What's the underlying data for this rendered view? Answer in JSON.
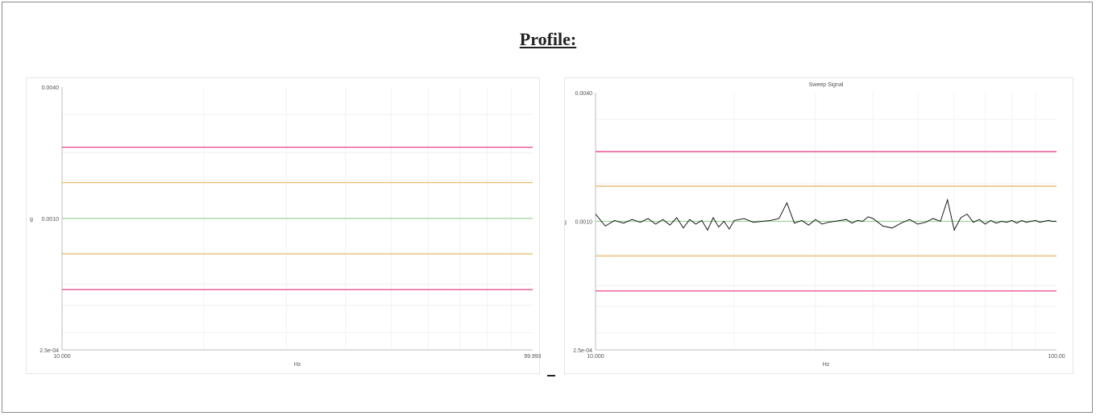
{
  "page": {
    "title": "Profile:"
  },
  "chart_data": [
    {
      "type": "line",
      "title": "",
      "xlabel": "Hz",
      "ylabel": "g",
      "xlim": [
        10.0,
        99.993
      ],
      "ylim": [
        0.00025,
        0.004
      ],
      "y_scale": "log",
      "y_ticks": [
        "0.0040",
        "0.0010",
        "2.5e-04"
      ],
      "x_ticks": [
        "10.000",
        "99.993"
      ],
      "grid": true,
      "series": [
        {
          "color": "#e8408c",
          "values": [
            0.00212,
            0.00212
          ]
        },
        {
          "color": "#e7b96b",
          "values": [
            0.00146,
            0.00146
          ]
        },
        {
          "color": "#9fd39f",
          "values": [
            0.001,
            0.001
          ]
        },
        {
          "color": "#e7b96b",
          "values": [
            0.000688,
            0.000688
          ]
        },
        {
          "color": "#e8408c",
          "values": [
            0.000472,
            0.000472
          ]
        }
      ],
      "x": [
        10.0,
        99.993
      ]
    },
    {
      "type": "line",
      "title": "Sweep Signal",
      "xlabel": "Hz",
      "ylabel": "g",
      "xlim": [
        10.0,
        100.0
      ],
      "ylim": [
        0.00025,
        0.004
      ],
      "y_scale": "log",
      "y_ticks": [
        "0.0040",
        "0.0010",
        "2.5e-04"
      ],
      "x_ticks": [
        "10.000",
        "100.00"
      ],
      "grid": true,
      "limit_lines": [
        {
          "color": "#e8408c",
          "value": 0.00212
        },
        {
          "color": "#e7b96b",
          "value": 0.00146
        },
        {
          "color": "#9fd39f",
          "value": 0.001
        },
        {
          "color": "#e7b96b",
          "value": 0.000688
        },
        {
          "color": "#e8408c",
          "value": 0.000472
        }
      ],
      "signal": {
        "color": "#1a1a1a",
        "x": [
          10.0,
          10.5,
          11.0,
          11.5,
          12.0,
          12.5,
          13.0,
          13.5,
          14.0,
          14.5,
          15.0,
          15.5,
          16.0,
          16.5,
          17.0,
          17.5,
          18.0,
          18.5,
          19.0,
          19.5,
          20.0,
          21.0,
          22.0,
          23.0,
          24.0,
          25.0,
          26.0,
          27.0,
          28.0,
          29.0,
          30.0,
          31.0,
          32.0,
          33.0,
          34.0,
          35.0,
          36.0,
          37.0,
          38.0,
          39.0,
          40.0,
          42.0,
          44.0,
          46.0,
          48.0,
          50.0,
          52.0,
          54.0,
          56.0,
          58.0,
          60.0,
          62.0,
          64.0,
          66.0,
          68.0,
          70.0,
          72.0,
          74.0,
          76.0,
          78.0,
          80.0,
          82.0,
          84.0,
          86.0,
          88.0,
          90.0,
          92.0,
          94.0,
          96.0,
          98.0,
          100.0
        ],
        "values": [
          0.00108,
          0.00095,
          0.00101,
          0.00098,
          0.00102,
          0.00099,
          0.00103,
          0.00097,
          0.00102,
          0.00096,
          0.00104,
          0.00093,
          0.00102,
          0.00097,
          0.00101,
          0.00091,
          0.00104,
          0.00094,
          0.001,
          0.00092,
          0.00101,
          0.00103,
          0.00099,
          0.001,
          0.00101,
          0.00103,
          0.00122,
          0.00098,
          0.00101,
          0.00096,
          0.00102,
          0.00097,
          0.00099,
          0.001,
          0.00101,
          0.00102,
          0.00098,
          0.00101,
          0.001,
          0.00105,
          0.00103,
          0.00095,
          0.00093,
          0.00098,
          0.00102,
          0.00097,
          0.00099,
          0.00103,
          0.001,
          0.00126,
          0.00091,
          0.00104,
          0.00108,
          0.00099,
          0.00102,
          0.00097,
          0.00101,
          0.00098,
          0.001,
          0.00099,
          0.00101,
          0.00098,
          0.00101,
          0.00099,
          0.001,
          0.00101,
          0.00099,
          0.001,
          0.00101,
          0.001,
          0.001
        ]
      }
    }
  ]
}
